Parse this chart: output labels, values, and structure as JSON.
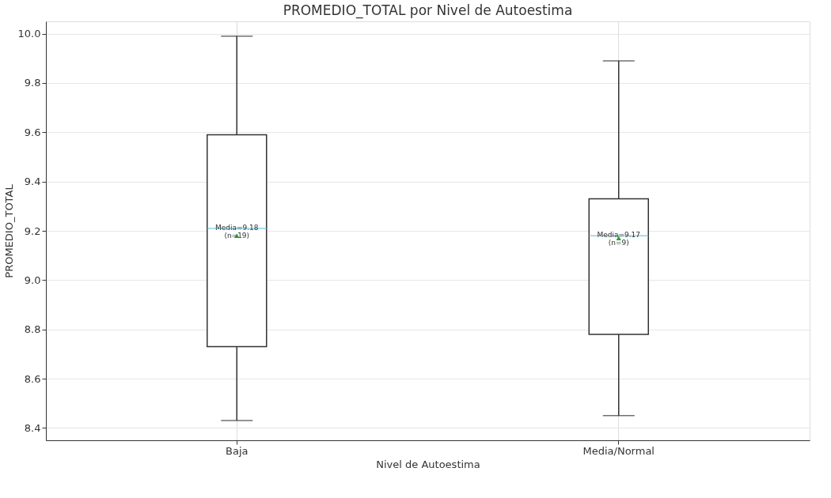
{
  "chart_data": {
    "type": "box",
    "title": "PROMEDIO_TOTAL por Nivel de Autoestima",
    "xlabel": "Nivel de Autoestima",
    "ylabel": "PROMEDIO_TOTAL",
    "categories": [
      "Baja",
      "Media/Normal"
    ],
    "boxes": [
      {
        "low": 8.43,
        "q1": 8.73,
        "median": 9.21,
        "q3": 9.59,
        "high": 9.99,
        "mean": 9.18
      },
      {
        "low": 8.45,
        "q1": 8.78,
        "median": 9.18,
        "q3": 9.33,
        "high": 9.89,
        "mean": 9.17
      }
    ],
    "annotations": [
      "Media=9.18\n(n=19)",
      "Media=9.17\n(n=9)"
    ],
    "ylim": [
      8.35,
      10.05
    ],
    "yticks": [
      8.4,
      8.6,
      8.8,
      {
        "value": 9,
        "label": "9.0"
      },
      9.2,
      9.4,
      9.6,
      9.8,
      {
        "value": 10,
        "label": "10.0"
      }
    ],
    "grid": true
  }
}
